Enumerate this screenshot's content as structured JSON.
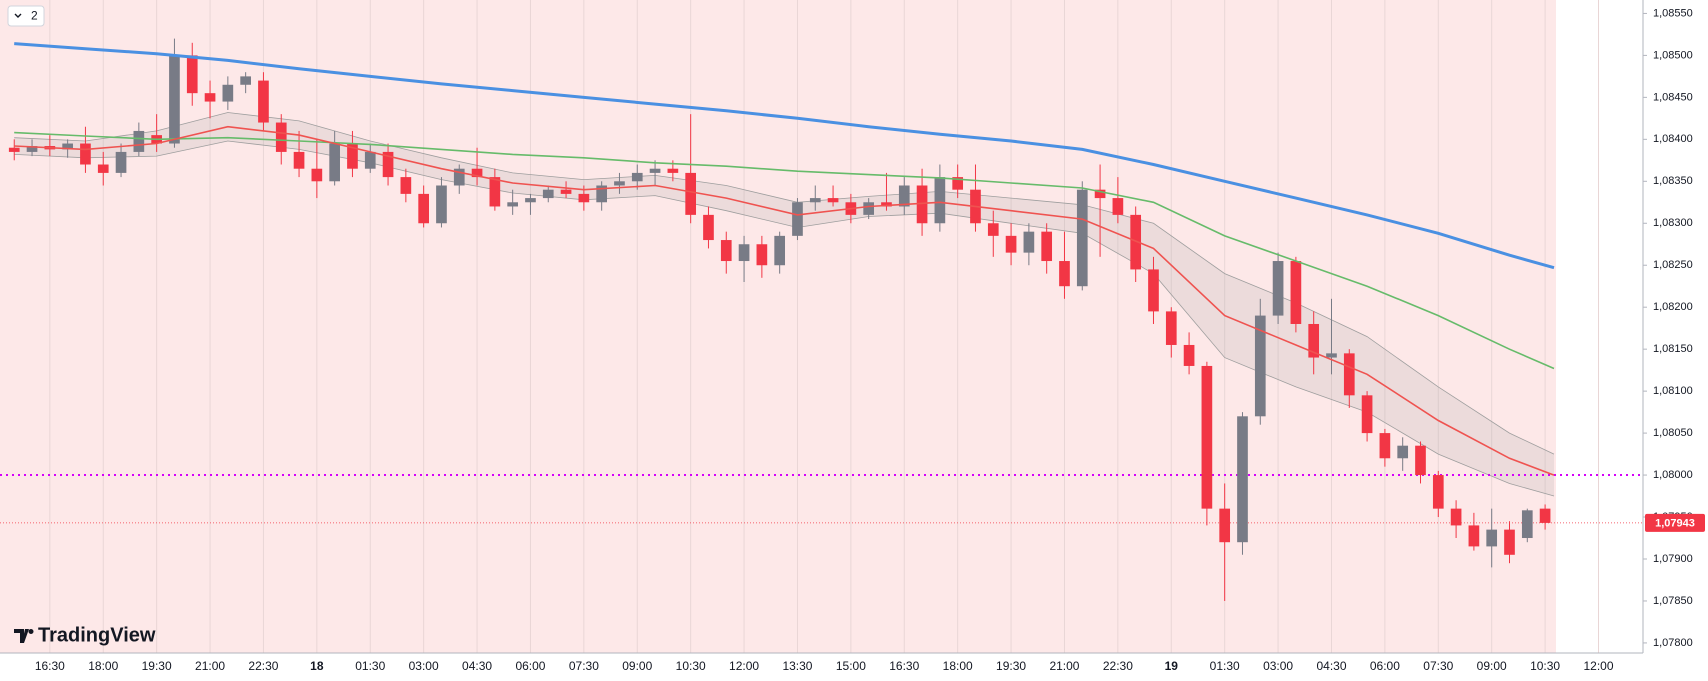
{
  "badge": "2",
  "logo": "TradingView",
  "chart_data": {
    "type": "candlestick",
    "up_color": "#787b86",
    "down_color": "#f23645",
    "x": [
      15.5,
      16,
      16.5,
      17,
      17.5,
      18,
      18.5,
      19,
      19.5,
      20,
      20.5,
      21,
      21.5,
      22,
      22.5,
      23,
      23.5,
      24,
      24.5,
      25,
      25.5,
      26,
      26.5,
      27,
      27.5,
      28,
      28.5,
      29,
      29.5,
      30,
      30.5,
      31,
      31.5,
      32,
      32.5,
      33,
      33.5,
      34,
      34.5,
      35,
      35.5,
      36,
      36.5,
      37,
      37.5,
      38,
      38.5,
      39,
      39.5,
      40,
      40.5,
      41,
      41.5,
      42,
      42.5,
      43,
      43.5,
      44,
      44.5,
      45,
      45.5,
      46,
      46.5,
      47,
      47.5,
      48,
      48.5,
      49,
      49.5,
      50,
      50.5,
      51,
      51.5,
      52,
      52.5,
      53,
      53.5,
      54,
      54.5,
      55,
      55.5,
      56,
      56.5,
      57,
      57.5,
      58,
      58.5
    ],
    "ohlc": [
      [
        1.0839,
        1.084,
        1.08375,
        1.08385
      ],
      [
        1.08385,
        1.084,
        1.0838,
        1.08392
      ],
      [
        1.08392,
        1.08405,
        1.0838,
        1.08388
      ],
      [
        1.08388,
        1.084,
        1.08378,
        1.08395
      ],
      [
        1.08395,
        1.08415,
        1.0836,
        1.0837
      ],
      [
        1.0837,
        1.08385,
        1.08345,
        1.0836
      ],
      [
        1.0836,
        1.08395,
        1.08355,
        1.08385
      ],
      [
        1.08385,
        1.0842,
        1.0838,
        1.0841
      ],
      [
        1.08405,
        1.0843,
        1.08385,
        1.08395
      ],
      [
        1.08395,
        1.0852,
        1.0839,
        1.085
      ],
      [
        1.085,
        1.08515,
        1.0844,
        1.08455
      ],
      [
        1.08455,
        1.0847,
        1.08425,
        1.08445
      ],
      [
        1.08445,
        1.08475,
        1.08435,
        1.08465
      ],
      [
        1.08465,
        1.0848,
        1.08455,
        1.08475
      ],
      [
        1.0847,
        1.0848,
        1.0841,
        1.0842
      ],
      [
        1.0842,
        1.0843,
        1.0837,
        1.08385
      ],
      [
        1.08385,
        1.0841,
        1.08355,
        1.08365
      ],
      [
        1.08365,
        1.084,
        1.0833,
        1.0835
      ],
      [
        1.0835,
        1.0841,
        1.08345,
        1.08395
      ],
      [
        1.08395,
        1.0841,
        1.08355,
        1.08365
      ],
      [
        1.08365,
        1.08395,
        1.0836,
        1.08385
      ],
      [
        1.08385,
        1.08395,
        1.08345,
        1.08355
      ],
      [
        1.08355,
        1.08365,
        1.08325,
        1.08335
      ],
      [
        1.08335,
        1.08345,
        1.08295,
        1.083
      ],
      [
        1.083,
        1.08355,
        1.08295,
        1.08345
      ],
      [
        1.08345,
        1.0837,
        1.08335,
        1.08365
      ],
      [
        1.08365,
        1.0839,
        1.08345,
        1.08355
      ],
      [
        1.08355,
        1.08365,
        1.08315,
        1.0832
      ],
      [
        1.0832,
        1.0834,
        1.0831,
        1.08325
      ],
      [
        1.08325,
        1.08335,
        1.0831,
        1.0833
      ],
      [
        1.0833,
        1.08345,
        1.08325,
        1.0834
      ],
      [
        1.0834,
        1.0835,
        1.0833,
        1.08335
      ],
      [
        1.08335,
        1.08345,
        1.08315,
        1.08325
      ],
      [
        1.08325,
        1.0835,
        1.08315,
        1.08345
      ],
      [
        1.08345,
        1.0836,
        1.08335,
        1.0835
      ],
      [
        1.0835,
        1.0837,
        1.0834,
        1.0836
      ],
      [
        1.0836,
        1.08375,
        1.08345,
        1.08365
      ],
      [
        1.08365,
        1.08375,
        1.0835,
        1.0836
      ],
      [
        1.0836,
        1.0843,
        1.083,
        1.0831
      ],
      [
        1.0831,
        1.0832,
        1.0827,
        1.0828
      ],
      [
        1.0828,
        1.0829,
        1.0824,
        1.08255
      ],
      [
        1.08255,
        1.08285,
        1.0823,
        1.08275
      ],
      [
        1.08275,
        1.08285,
        1.08235,
        1.0825
      ],
      [
        1.0825,
        1.0829,
        1.0824,
        1.08285
      ],
      [
        1.08285,
        1.0833,
        1.0828,
        1.08325
      ],
      [
        1.08325,
        1.08345,
        1.08315,
        1.0833
      ],
      [
        1.0833,
        1.08345,
        1.0832,
        1.08325
      ],
      [
        1.08325,
        1.08335,
        1.083,
        1.0831
      ],
      [
        1.0831,
        1.0833,
        1.08305,
        1.08325
      ],
      [
        1.08325,
        1.0836,
        1.08315,
        1.0832
      ],
      [
        1.0832,
        1.08355,
        1.0831,
        1.08345
      ],
      [
        1.08345,
        1.08365,
        1.08285,
        1.083
      ],
      [
        1.083,
        1.0837,
        1.0829,
        1.08355
      ],
      [
        1.08355,
        1.0837,
        1.0833,
        1.0834
      ],
      [
        1.0834,
        1.0837,
        1.0829,
        1.083
      ],
      [
        1.083,
        1.08315,
        1.0826,
        1.08285
      ],
      [
        1.08285,
        1.083,
        1.0825,
        1.08265
      ],
      [
        1.08265,
        1.083,
        1.0825,
        1.0829
      ],
      [
        1.0829,
        1.083,
        1.0824,
        1.08255
      ],
      [
        1.08255,
        1.0829,
        1.0821,
        1.08225
      ],
      [
        1.08225,
        1.0835,
        1.0822,
        1.0834
      ],
      [
        1.0834,
        1.0837,
        1.0826,
        1.0833
      ],
      [
        1.0833,
        1.08355,
        1.083,
        1.0831
      ],
      [
        1.0831,
        1.0832,
        1.0823,
        1.08245
      ],
      [
        1.08245,
        1.0826,
        1.0818,
        1.08195
      ],
      [
        1.08195,
        1.082,
        1.0814,
        1.08155
      ],
      [
        1.08155,
        1.0817,
        1.0812,
        1.0813
      ],
      [
        1.0813,
        1.08135,
        1.0794,
        1.0796
      ],
      [
        1.0796,
        1.0799,
        1.0785,
        1.0792
      ],
      [
        1.0792,
        1.08075,
        1.07905,
        1.0807
      ],
      [
        1.0807,
        1.0821,
        1.0806,
        1.0819
      ],
      [
        1.0819,
        1.08265,
        1.0818,
        1.08255
      ],
      [
        1.08255,
        1.0826,
        1.0817,
        1.0818
      ],
      [
        1.0818,
        1.08195,
        1.0812,
        1.0814
      ],
      [
        1.0814,
        1.0821,
        1.0812,
        1.08145
      ],
      [
        1.08145,
        1.0815,
        1.0808,
        1.08095
      ],
      [
        1.08095,
        1.081,
        1.0804,
        1.0805
      ],
      [
        1.0805,
        1.08055,
        1.0801,
        1.0802
      ],
      [
        1.0802,
        1.08045,
        1.08005,
        1.08035
      ],
      [
        1.08035,
        1.0804,
        1.0799,
        1.08
      ],
      [
        1.08,
        1.08005,
        1.0795,
        1.0796
      ],
      [
        1.0796,
        1.0797,
        1.07925,
        1.0794
      ],
      [
        1.0794,
        1.07955,
        1.0791,
        1.07915
      ],
      [
        1.07915,
        1.0796,
        1.0789,
        1.07935
      ],
      [
        1.07935,
        1.07945,
        1.07895,
        1.07905
      ],
      [
        1.07925,
        1.0796,
        1.0792,
        1.07958
      ],
      [
        1.0796,
        1.07965,
        1.07935,
        1.07943
      ]
    ],
    "line_x": [
      15.5,
      17.5,
      19.5,
      21.5,
      23.5,
      25.5,
      27.5,
      29.5,
      31.5,
      33.5,
      35.5,
      37.5,
      39.5,
      41.5,
      43.5,
      45.5,
      47.5,
      49.5,
      51.5,
      53.5,
      55.5,
      57.5,
      58.75
    ],
    "lines": [
      {
        "color": "#4a90e2",
        "values": [
          1.08514,
          1.08508,
          1.08502,
          1.08494,
          1.08484,
          1.08475,
          1.08466,
          1.08458,
          1.0845,
          1.08442,
          1.08434,
          1.08425,
          1.08415,
          1.08406,
          1.08398,
          1.08388,
          1.0837,
          1.0835,
          1.0833,
          1.0831,
          1.08288,
          1.08262,
          1.08247
        ]
      },
      {
        "color": "#66bb6a",
        "values": [
          1.08408,
          1.08404,
          1.084,
          1.08402,
          1.08398,
          1.08394,
          1.08388,
          1.08382,
          1.08378,
          1.08372,
          1.08368,
          1.08362,
          1.08358,
          1.08354,
          1.08348,
          1.08342,
          1.08325,
          1.08285,
          1.08255,
          1.08225,
          1.0819,
          1.0815,
          1.08127
        ]
      },
      {
        "color": "#ef5350",
        "values": [
          1.08392,
          1.08388,
          1.08395,
          1.08415,
          1.08405,
          1.08385,
          1.08365,
          1.08348,
          1.0834,
          1.08345,
          1.0833,
          1.0831,
          1.0832,
          1.08325,
          1.08315,
          1.08305,
          1.0827,
          1.0819,
          1.08155,
          1.0812,
          1.08065,
          1.0802,
          1.08
        ]
      }
    ],
    "band": {
      "color": "#9e9e9e",
      "upper": [
        1.08402,
        1.08398,
        1.0841,
        1.08432,
        1.08422,
        1.08398,
        1.08378,
        1.0836,
        1.08352,
        1.08357,
        1.08345,
        1.08325,
        1.08332,
        1.08338,
        1.0833,
        1.08322,
        1.083,
        1.0824,
        1.08205,
        1.08165,
        1.08105,
        1.0805,
        1.08025
      ],
      "lower": [
        1.08382,
        1.08378,
        1.0838,
        1.08398,
        1.08388,
        1.08372,
        1.08352,
        1.08336,
        1.08328,
        1.08333,
        1.08315,
        1.08295,
        1.08308,
        1.08312,
        1.083,
        1.08288,
        1.0824,
        1.0814,
        1.08105,
        1.08075,
        1.08025,
        1.0799,
        1.07975
      ]
    },
    "hline": {
      "value": 1.08,
      "color": "#d500f9"
    },
    "last_price": {
      "value": 1.07943,
      "label": "1,07943",
      "color": "#f23645"
    },
    "xlim": [
      15.1,
      61.25
    ],
    "xticks": [
      {
        "value": 16.5,
        "label": "16:30"
      },
      {
        "value": 18,
        "label": "18:00"
      },
      {
        "value": 19.5,
        "label": "19:30"
      },
      {
        "value": 21,
        "label": "21:00"
      },
      {
        "value": 22.5,
        "label": "22:30"
      },
      {
        "value": 24,
        "label": "18"
      },
      {
        "value": 25.5,
        "label": "01:30"
      },
      {
        "value": 27,
        "label": "03:00"
      },
      {
        "value": 28.5,
        "label": "04:30"
      },
      {
        "value": 30,
        "label": "06:00"
      },
      {
        "value": 31.5,
        "label": "07:30"
      },
      {
        "value": 33,
        "label": "09:00"
      },
      {
        "value": 34.5,
        "label": "10:30"
      },
      {
        "value": 36,
        "label": "12:00"
      },
      {
        "value": 37.5,
        "label": "13:30"
      },
      {
        "value": 39,
        "label": "15:00"
      },
      {
        "value": 40.5,
        "label": "16:30"
      },
      {
        "value": 42,
        "label": "18:00"
      },
      {
        "value": 43.5,
        "label": "19:30"
      },
      {
        "value": 45,
        "label": "21:00"
      },
      {
        "value": 46.5,
        "label": "22:30"
      },
      {
        "value": 48,
        "label": "19"
      },
      {
        "value": 49.5,
        "label": "01:30"
      },
      {
        "value": 51,
        "label": "03:00"
      },
      {
        "value": 52.5,
        "label": "04:30"
      },
      {
        "value": 54,
        "label": "06:00"
      },
      {
        "value": 55.5,
        "label": "07:30"
      },
      {
        "value": 57,
        "label": "09:00"
      },
      {
        "value": 58.5,
        "label": "10:30"
      },
      {
        "value": 60,
        "label": "12:00"
      }
    ],
    "ylim": [
      1.07788,
      1.08566
    ],
    "yticks": [
      {
        "value": 1.078,
        "label": "1,07800"
      },
      {
        "value": 1.0785,
        "label": "1,07850"
      },
      {
        "value": 1.079,
        "label": "1,07900"
      },
      {
        "value": 1.0795,
        "label": "1,07950"
      },
      {
        "value": 1.08,
        "label": "1,08000"
      },
      {
        "value": 1.0805,
        "label": "1,08050"
      },
      {
        "value": 1.081,
        "label": "1,08100"
      },
      {
        "value": 1.0815,
        "label": "1,08150"
      },
      {
        "value": 1.082,
        "label": "1,08200"
      },
      {
        "value": 1.0825,
        "label": "1,08250"
      },
      {
        "value": 1.083,
        "label": "1,08300"
      },
      {
        "value": 1.0835,
        "label": "1,08350"
      },
      {
        "value": 1.084,
        "label": "1,08400"
      },
      {
        "value": 1.0845,
        "label": "1,08450"
      },
      {
        "value": 1.085,
        "label": "1,08500"
      },
      {
        "value": 1.0855,
        "label": "1,08550"
      }
    ]
  }
}
